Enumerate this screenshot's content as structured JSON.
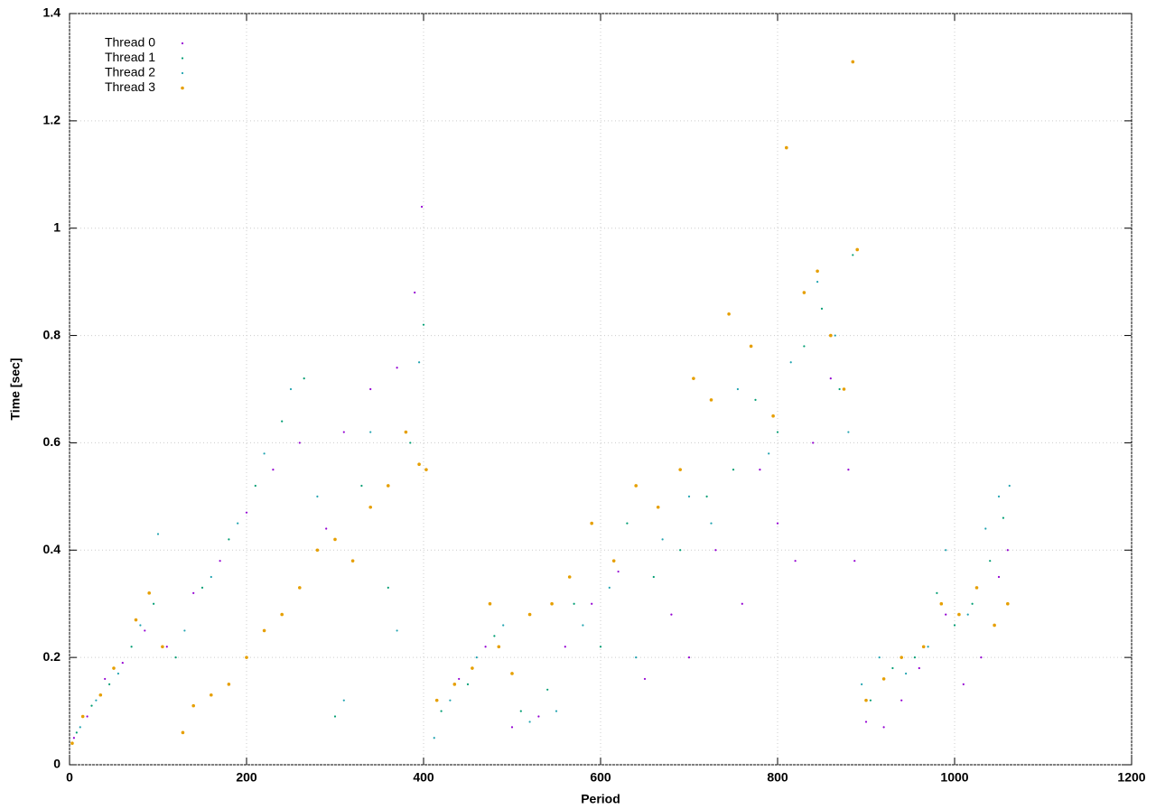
{
  "chart_data": {
    "type": "scatter",
    "xlabel": "Period",
    "ylabel": "Time [sec]",
    "xlim": [
      0,
      1200
    ],
    "ylim": [
      0,
      1.4
    ],
    "xticks": [
      0,
      200,
      400,
      600,
      800,
      1000,
      1200
    ],
    "yticks": [
      0,
      0.2,
      0.4,
      0.6,
      0.8,
      1,
      1.2,
      1.4
    ],
    "grid": true,
    "legend": "upper-left",
    "series": [
      {
        "name": "Thread 0",
        "color": "#9400d3",
        "x": [
          5,
          20,
          40,
          60,
          85,
          110,
          140,
          170,
          200,
          230,
          260,
          290,
          310,
          340,
          370,
          390,
          398,
          415,
          440,
          470,
          500,
          530,
          560,
          590,
          620,
          650,
          680,
          700,
          730,
          760,
          780,
          800,
          820,
          840,
          860,
          880,
          887,
          900,
          920,
          940,
          960,
          990,
          1010,
          1030,
          1050,
          1060
        ],
        "values": [
          0.05,
          0.09,
          0.16,
          0.19,
          0.25,
          0.22,
          0.32,
          0.38,
          0.47,
          0.55,
          0.6,
          0.44,
          0.62,
          0.7,
          0.74,
          0.88,
          1.04,
          0.12,
          0.16,
          0.22,
          0.07,
          0.09,
          0.22,
          0.3,
          0.36,
          0.16,
          0.28,
          0.2,
          0.4,
          0.3,
          0.55,
          0.45,
          0.38,
          0.6,
          0.72,
          0.55,
          0.38,
          0.08,
          0.07,
          0.12,
          0.18,
          0.28,
          0.15,
          0.2,
          0.35,
          0.4
        ]
      },
      {
        "name": "Thread 1",
        "color": "#009e73",
        "x": [
          8,
          25,
          45,
          70,
          95,
          120,
          150,
          180,
          210,
          240,
          265,
          300,
          330,
          360,
          385,
          400,
          420,
          450,
          480,
          510,
          540,
          570,
          600,
          630,
          660,
          690,
          720,
          750,
          775,
          800,
          830,
          850,
          870,
          885,
          905,
          930,
          955,
          980,
          1000,
          1020,
          1040,
          1055
        ],
        "values": [
          0.06,
          0.11,
          0.15,
          0.22,
          0.3,
          0.2,
          0.33,
          0.42,
          0.52,
          0.64,
          0.72,
          0.09,
          0.52,
          0.33,
          0.6,
          0.82,
          0.1,
          0.15,
          0.24,
          0.1,
          0.14,
          0.3,
          0.22,
          0.45,
          0.35,
          0.4,
          0.5,
          0.55,
          0.68,
          0.62,
          0.78,
          0.85,
          0.7,
          0.95,
          0.12,
          0.18,
          0.2,
          0.32,
          0.26,
          0.3,
          0.38,
          0.46
        ]
      },
      {
        "name": "Thread 2",
        "color": "#1fa3b0",
        "x": [
          12,
          30,
          55,
          80,
          100,
          130,
          160,
          190,
          220,
          250,
          280,
          310,
          340,
          370,
          395,
          412,
          430,
          460,
          490,
          520,
          550,
          580,
          610,
          640,
          670,
          700,
          725,
          755,
          790,
          815,
          845,
          865,
          880,
          895,
          915,
          945,
          970,
          990,
          1015,
          1035,
          1050,
          1062
        ],
        "values": [
          0.07,
          0.12,
          0.17,
          0.26,
          0.43,
          0.25,
          0.35,
          0.45,
          0.58,
          0.7,
          0.5,
          0.12,
          0.62,
          0.25,
          0.75,
          0.05,
          0.12,
          0.2,
          0.26,
          0.08,
          0.1,
          0.26,
          0.33,
          0.2,
          0.42,
          0.5,
          0.45,
          0.7,
          0.58,
          0.75,
          0.9,
          0.8,
          0.62,
          0.15,
          0.2,
          0.17,
          0.22,
          0.4,
          0.28,
          0.44,
          0.5,
          0.52
        ]
      },
      {
        "name": "Thread 3",
        "color": "#e69f00",
        "x": [
          3,
          15,
          35,
          50,
          75,
          90,
          105,
          128,
          140,
          160,
          180,
          200,
          220,
          240,
          260,
          280,
          300,
          320,
          340,
          360,
          380,
          395,
          403,
          415,
          435,
          455,
          475,
          485,
          500,
          520,
          545,
          565,
          590,
          615,
          640,
          665,
          690,
          705,
          725,
          745,
          770,
          795,
          810,
          830,
          845,
          860,
          875,
          885,
          890,
          900,
          920,
          940,
          965,
          985,
          1005,
          1025,
          1045,
          1060
        ],
        "values": [
          0.04,
          0.09,
          0.13,
          0.18,
          0.27,
          0.32,
          0.22,
          0.06,
          0.11,
          0.13,
          0.15,
          0.2,
          0.25,
          0.28,
          0.33,
          0.4,
          0.42,
          0.38,
          0.48,
          0.52,
          0.62,
          0.56,
          0.55,
          0.12,
          0.15,
          0.18,
          0.3,
          0.22,
          0.17,
          0.28,
          0.3,
          0.35,
          0.45,
          0.38,
          0.52,
          0.48,
          0.55,
          0.72,
          0.68,
          0.84,
          0.78,
          0.65,
          1.15,
          0.88,
          0.92,
          0.8,
          0.7,
          1.31,
          0.96,
          0.12,
          0.16,
          0.2,
          0.22,
          0.3,
          0.28,
          0.33,
          0.26,
          0.3
        ]
      }
    ]
  }
}
